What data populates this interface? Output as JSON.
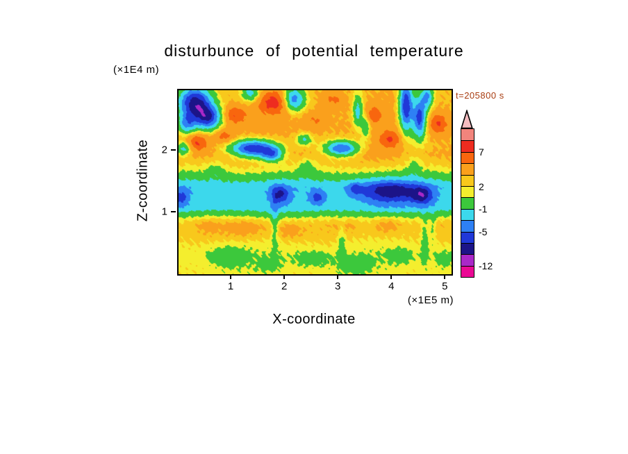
{
  "title": "disturbunce of potential temperature",
  "time_label": "t=205800 s",
  "colors": {
    "time_label": "#a83c10",
    "axis": "#000000"
  },
  "axes": {
    "x_label": "X-coordinate",
    "x_unit": "(×1E5 m)",
    "x_ticks": [
      "1",
      "2",
      "3",
      "4",
      "5"
    ],
    "y_label": "Z-coordinate",
    "y_unit": "(×1E4 m)",
    "y_ticks": [
      "1",
      "2"
    ]
  },
  "chart_data": {
    "type": "heatmap",
    "title": "disturbunce of potential temperature",
    "time_s": 205800,
    "x_range_1e5_m": [
      0,
      5.1
    ],
    "z_range_1e4_m": [
      0,
      3.0
    ],
    "levels": [
      -12,
      -9,
      -7,
      -5,
      -3,
      -1,
      1,
      2,
      3,
      5,
      7,
      9,
      11
    ],
    "band_colors_low_to_high": [
      "#ea0894",
      "#aa28c8",
      "#1c1488",
      "#2038d8",
      "#2e80f4",
      "#3cd8ec",
      "#3cc83c",
      "#f4ee2e",
      "#f8c81c",
      "#faa01c",
      "#f8660e",
      "#ee2c20",
      "#f2847c",
      "#f4bcc0"
    ],
    "colorbar_labels": [
      {
        "value": 7,
        "text": "7"
      },
      {
        "value": 2,
        "text": "2"
      },
      {
        "value": -1,
        "text": "-1"
      },
      {
        "value": -5,
        "text": "-5"
      },
      {
        "value": -12,
        "text": "-12"
      }
    ],
    "base_profile_z_v": [
      [
        0.0,
        1.6
      ],
      [
        0.3,
        1.3
      ],
      [
        0.5,
        1.8
      ],
      [
        0.62,
        2.3
      ],
      [
        0.8,
        2.5
      ],
      [
        0.88,
        1.8
      ],
      [
        0.97,
        0.2
      ],
      [
        1.08,
        -2.0
      ],
      [
        1.42,
        -2.5
      ],
      [
        1.55,
        -0.6
      ],
      [
        1.66,
        1.0
      ],
      [
        1.78,
        2.3
      ],
      [
        1.95,
        3.4
      ],
      [
        2.15,
        3.1
      ],
      [
        2.45,
        3.4
      ],
      [
        2.7,
        3.2
      ],
      [
        3.0,
        3.0
      ]
    ],
    "anomalies": [
      {
        "x": 0.3,
        "z": 2.8,
        "sx": 0.22,
        "sz": 0.18,
        "a": -11
      },
      {
        "x": 0.55,
        "z": 2.55,
        "sx": 0.18,
        "sz": 0.14,
        "a": -9
      },
      {
        "x": 0.15,
        "z": 2.45,
        "sx": 0.12,
        "sz": 0.12,
        "a": -6
      },
      {
        "x": 1.35,
        "z": 2.95,
        "sx": 0.12,
        "sz": 0.1,
        "a": -5
      },
      {
        "x": 2.15,
        "z": 2.85,
        "sx": 0.15,
        "sz": 0.14,
        "a": -8
      },
      {
        "x": 4.25,
        "z": 2.75,
        "sx": 0.09,
        "sz": 0.3,
        "a": -10
      },
      {
        "x": 4.5,
        "z": 2.55,
        "sx": 0.09,
        "sz": 0.24,
        "a": -9
      },
      {
        "x": 4.65,
        "z": 2.9,
        "sx": 0.08,
        "sz": 0.14,
        "a": -6
      },
      {
        "x": 3.35,
        "z": 2.65,
        "sx": 0.07,
        "sz": 0.2,
        "a": -5
      },
      {
        "x": 3.5,
        "z": 2.4,
        "sx": 0.06,
        "sz": 0.14,
        "a": -4
      },
      {
        "x": 1.4,
        "z": 2.05,
        "sx": 0.3,
        "sz": 0.1,
        "a": -10
      },
      {
        "x": 1.75,
        "z": 1.95,
        "sx": 0.14,
        "sz": 0.08,
        "a": -6
      },
      {
        "x": 3.05,
        "z": 2.05,
        "sx": 0.22,
        "sz": 0.09,
        "a": -8
      },
      {
        "x": 0.1,
        "z": 2.05,
        "sx": 0.1,
        "sz": 0.08,
        "a": -5
      },
      {
        "x": 2.35,
        "z": 2.2,
        "sx": 0.1,
        "sz": 0.07,
        "a": -4
      },
      {
        "x": 1.9,
        "z": 1.3,
        "sx": 0.12,
        "sz": 0.1,
        "a": -5
      },
      {
        "x": 2.6,
        "z": 1.25,
        "sx": 0.1,
        "sz": 0.08,
        "a": -4
      },
      {
        "x": 3.95,
        "z": 1.35,
        "sx": 0.4,
        "sz": 0.13,
        "a": -6
      },
      {
        "x": 4.55,
        "z": 1.28,
        "sx": 0.14,
        "sz": 0.1,
        "a": -5
      },
      {
        "x": 3.3,
        "z": 1.4,
        "sx": 0.08,
        "sz": 0.07,
        "a": -3
      },
      {
        "x": 0.05,
        "z": 1.25,
        "sx": 0.1,
        "sz": 0.1,
        "a": -3.5
      },
      {
        "x": 1.8,
        "z": 2.8,
        "sx": 0.22,
        "sz": 0.13,
        "a": 5
      },
      {
        "x": 1.05,
        "z": 2.6,
        "sx": 0.15,
        "sz": 0.1,
        "a": 4
      },
      {
        "x": 0.35,
        "z": 2.15,
        "sx": 0.15,
        "sz": 0.1,
        "a": 4.5
      },
      {
        "x": 0.85,
        "z": 2.25,
        "sx": 0.12,
        "sz": 0.08,
        "a": 3
      },
      {
        "x": 2.55,
        "z": 2.5,
        "sx": 0.15,
        "sz": 0.1,
        "a": 2
      },
      {
        "x": 3.65,
        "z": 2.6,
        "sx": 0.12,
        "sz": 0.1,
        "a": 3
      },
      {
        "x": 3.95,
        "z": 2.2,
        "sx": 0.15,
        "sz": 0.1,
        "a": 4
      },
      {
        "x": 4.85,
        "z": 2.45,
        "sx": 0.12,
        "sz": 0.12,
        "a": 4
      },
      {
        "x": 2.9,
        "z": 2.85,
        "sx": 0.15,
        "sz": 0.1,
        "a": 2.5
      },
      {
        "x": 2.4,
        "z": 1.75,
        "sx": 0.1,
        "sz": 0.1,
        "a": -2
      },
      {
        "x": 0.7,
        "z": 1.7,
        "sx": 0.12,
        "sz": 0.1,
        "a": -1.5
      },
      {
        "x": 4.4,
        "z": 1.75,
        "sx": 0.08,
        "sz": 0.12,
        "a": -2
      },
      {
        "x": 1.25,
        "z": 0.75,
        "sx": 0.3,
        "sz": 0.12,
        "a": 1.3
      },
      {
        "x": 2.05,
        "z": 0.7,
        "sx": 0.2,
        "sz": 0.1,
        "a": 1.2
      },
      {
        "x": 3.9,
        "z": 0.8,
        "sx": 0.18,
        "sz": 0.1,
        "a": 1.4
      },
      {
        "x": 0.55,
        "z": 0.8,
        "sx": 0.15,
        "sz": 0.1,
        "a": 0.8
      },
      {
        "x": 3.1,
        "z": 0.78,
        "sx": 0.15,
        "sz": 0.09,
        "a": 0.8
      },
      {
        "x": 1.8,
        "z": 0.85,
        "sx": 0.05,
        "sz": 0.3,
        "a": -2.5
      },
      {
        "x": 3.05,
        "z": 0.55,
        "sx": 0.05,
        "sz": 0.25,
        "a": -1.8
      },
      {
        "x": 4.6,
        "z": 0.55,
        "sx": 0.05,
        "sz": 0.3,
        "a": -2.2
      },
      {
        "x": 4.75,
        "z": 0.75,
        "sx": 0.04,
        "sz": 0.2,
        "a": -1.8
      },
      {
        "x": 0.9,
        "z": 0.3,
        "sx": 0.25,
        "sz": 0.12,
        "a": -1.8
      },
      {
        "x": 2.5,
        "z": 0.25,
        "sx": 0.25,
        "sz": 0.1,
        "a": -1.6
      },
      {
        "x": 3.3,
        "z": 0.15,
        "sx": 0.2,
        "sz": 0.1,
        "a": -1.4
      },
      {
        "x": 4.15,
        "z": 0.3,
        "sx": 0.18,
        "sz": 0.1,
        "a": -1.3
      },
      {
        "x": 4.95,
        "z": 0.25,
        "sx": 0.12,
        "sz": 0.1,
        "a": -1.5
      },
      {
        "x": 1.7,
        "z": 0.15,
        "sx": 0.15,
        "sz": 0.08,
        "a": -1.2
      }
    ],
    "noise_amp": 0.45,
    "legend_position": "right",
    "grid": false
  }
}
